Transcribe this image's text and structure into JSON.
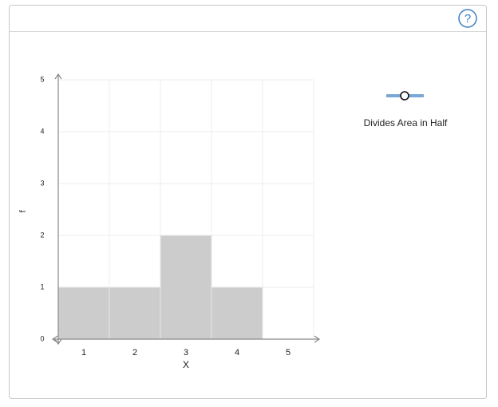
{
  "help": "?",
  "tool": {
    "label": "Divides Area in Half"
  },
  "chart_data": {
    "type": "bar",
    "x_label": "X",
    "y_label": "f",
    "categories": [
      "1",
      "2",
      "3",
      "4",
      "5"
    ],
    "values": [
      1,
      1,
      2,
      1,
      0
    ],
    "color": "#cccccc",
    "ylim": [
      0,
      5
    ],
    "yticks": [
      0,
      1,
      2,
      3,
      4,
      5
    ],
    "grid": true
  }
}
